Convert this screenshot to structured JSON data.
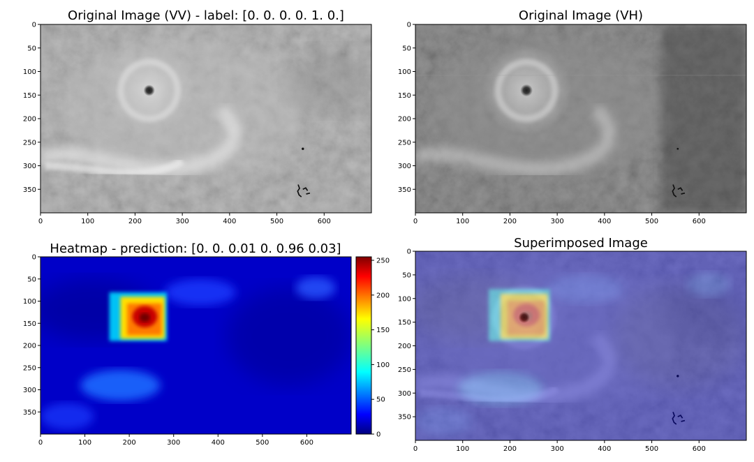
{
  "chart_data": [
    {
      "type": "heatmap",
      "title": "Original Image (VV) - label: [0. 0. 0. 0. 1. 0.]",
      "x_ticks": [
        0,
        100,
        200,
        300,
        400,
        500,
        600
      ],
      "y_ticks": [
        0,
        50,
        100,
        150,
        200,
        250,
        300,
        350
      ],
      "xlim": [
        0,
        700
      ],
      "ylim": [
        400,
        0
      ],
      "colormap": "gray"
    },
    {
      "type": "heatmap",
      "title": "Original Image (VH)",
      "x_ticks": [
        0,
        100,
        200,
        300,
        400,
        500,
        600
      ],
      "y_ticks": [
        0,
        50,
        100,
        150,
        200,
        250,
        300,
        350
      ],
      "xlim": [
        0,
        700
      ],
      "ylim": [
        400,
        0
      ],
      "colormap": "gray"
    },
    {
      "type": "heatmap",
      "title": "Heatmap - prediction: [0.   0.   0.01 0.   0.96 0.03]",
      "x_ticks": [
        0,
        100,
        200,
        300,
        400,
        500,
        600
      ],
      "y_ticks": [
        0,
        50,
        100,
        150,
        200,
        250,
        300,
        350
      ],
      "xlim": [
        0,
        700
      ],
      "ylim": [
        400,
        0
      ],
      "colormap": "jet",
      "colorbar": {
        "range": [
          0,
          255
        ],
        "ticks": [
          0,
          50,
          100,
          150,
          200,
          250
        ]
      },
      "hotspot_center": [
        235,
        135
      ],
      "hotspot_peak": 255
    },
    {
      "type": "heatmap",
      "title": "Superimposed Image",
      "x_ticks": [
        0,
        100,
        200,
        300,
        400,
        500,
        600
      ],
      "y_ticks": [
        0,
        50,
        100,
        150,
        200,
        250,
        300,
        350
      ],
      "xlim": [
        0,
        700
      ],
      "ylim": [
        400,
        0
      ],
      "colormap": "jet over gray"
    }
  ]
}
